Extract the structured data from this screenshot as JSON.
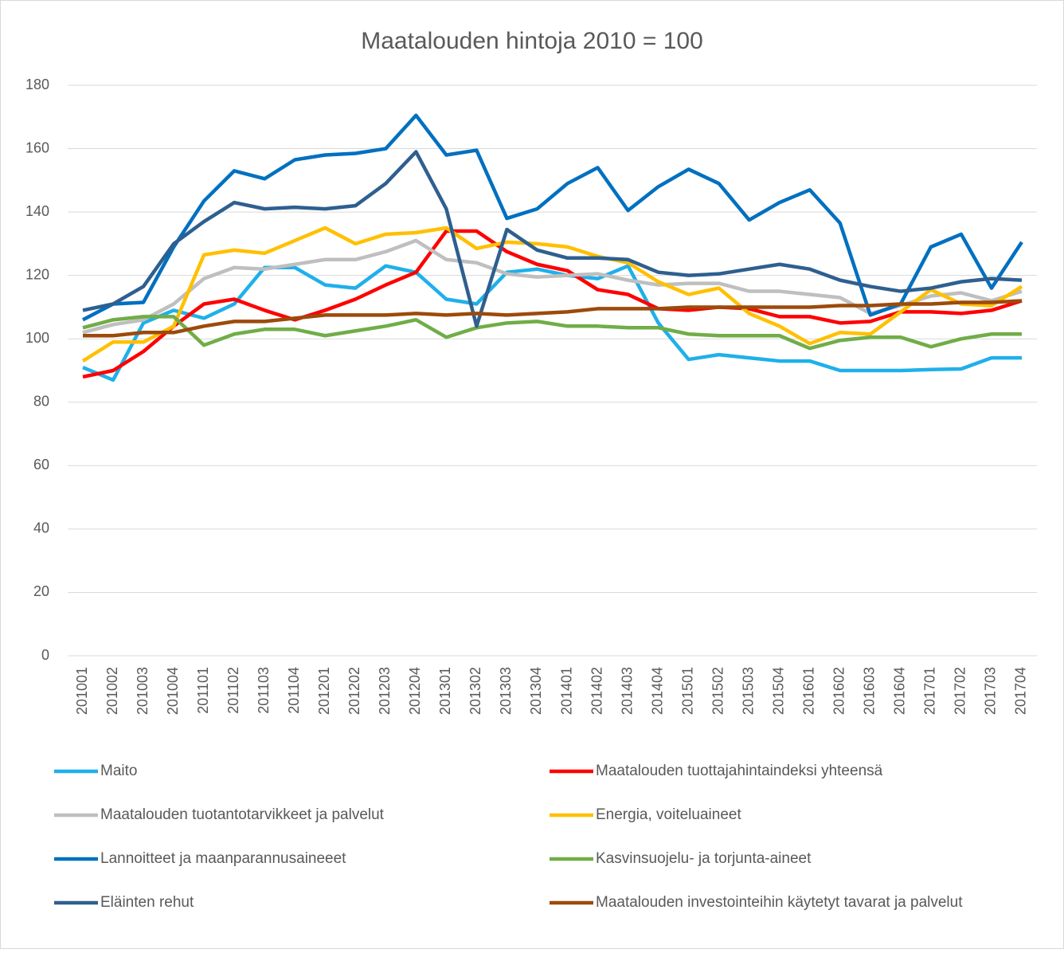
{
  "chart_data": {
    "type": "line",
    "title": "Maatalouden hintoja 2010 = 100",
    "categories": [
      "201001",
      "201002",
      "201003",
      "201004",
      "201101",
      "201102",
      "201103",
      "201104",
      "201201",
      "201202",
      "201203",
      "201204",
      "201301",
      "201302",
      "201303",
      "201304",
      "201401",
      "201402",
      "201403",
      "201404",
      "201501",
      "201502",
      "201503",
      "201504",
      "201601",
      "201602",
      "201603",
      "201604",
      "201701",
      "201702",
      "201703",
      "201704"
    ],
    "series": [
      {
        "name": "Maito",
        "color": "#1fb0ea",
        "values": [
          91,
          87,
          105,
          109,
          106.5,
          111,
          122.5,
          122.5,
          117,
          116,
          123,
          121,
          112.5,
          111,
          121,
          122,
          120,
          119,
          123,
          105,
          93.5,
          95,
          94,
          93,
          93,
          90,
          90,
          90,
          90.3,
          90.5,
          94,
          94
        ]
      },
      {
        "name": "Maatalouden tuottajahintaindeksi yhteensä",
        "color": "#ff0000",
        "values": [
          88,
          90,
          96,
          104,
          111,
          112.5,
          109,
          106,
          109,
          112.5,
          117,
          121,
          134,
          134,
          127.5,
          123.5,
          121.5,
          115.5,
          114,
          109.5,
          109,
          110,
          109.5,
          107,
          107,
          105,
          105.5,
          108.5,
          108.5,
          108,
          109,
          112
        ]
      },
      {
        "name": "Maatalouden tuotantotarvikkeet ja palvelut",
        "color": "#bfbfbf",
        "values": [
          102,
          104.5,
          106,
          111,
          119,
          122.5,
          122,
          123.5,
          125,
          125,
          127.5,
          131,
          125,
          124,
          120.5,
          119.5,
          120,
          120.5,
          118.5,
          117,
          117.5,
          117.5,
          115,
          115,
          114,
          113,
          108,
          110.5,
          113.5,
          114.5,
          112,
          115
        ]
      },
      {
        "name": "Energia, voiteluaineet",
        "color": "#ffc000",
        "values": [
          93,
          99,
          99,
          104,
          126.5,
          128,
          127,
          131,
          135,
          130,
          133,
          133.5,
          135,
          128.5,
          130.5,
          130,
          129,
          126,
          124,
          118,
          114,
          116,
          108,
          104,
          98.5,
          102,
          101.5,
          108.5,
          115.5,
          111,
          110.5,
          116.5
        ]
      },
      {
        "name": "Lannoitteet ja maanparannusaineeet",
        "color": "#0070c0",
        "values": [
          106,
          111,
          111.5,
          129,
          143.5,
          153,
          150.5,
          156.5,
          158,
          158.5,
          160,
          170.5,
          158,
          159.5,
          138,
          141,
          149,
          154,
          140.5,
          148,
          153.5,
          149,
          137.5,
          143,
          147,
          136.5,
          107.5,
          111,
          129,
          133,
          116,
          130.5
        ]
      },
      {
        "name": "Kasvinsuojelu- ja torjunta-aineet",
        "color": "#70ad47",
        "values": [
          103.5,
          106,
          107,
          107,
          98,
          101.5,
          103,
          103,
          101,
          102.5,
          104,
          106,
          100.5,
          103.5,
          105,
          105.5,
          104,
          104,
          103.5,
          103.5,
          101.5,
          101,
          101,
          101,
          97,
          99.5,
          100.5,
          100.5,
          97.5,
          100,
          101.5,
          101.5
        ]
      },
      {
        "name": "Eläinten rehut",
        "color": "#2e5f8f",
        "values": [
          109,
          111,
          116.5,
          130,
          137,
          143,
          141,
          141.5,
          141,
          142,
          149,
          159,
          141,
          104,
          134.5,
          128,
          125.5,
          125.5,
          125,
          121,
          120,
          120.5,
          122,
          123.5,
          122,
          118.5,
          116.5,
          115,
          116,
          118,
          119,
          118.5
        ]
      },
      {
        "name": "Maatalouden investointeihin käytetyt tavarat ja palvelut",
        "color": "#9c4a0b",
        "values": [
          101,
          101,
          102,
          102,
          104,
          105.5,
          105.5,
          106.5,
          107.5,
          107.5,
          107.5,
          108,
          107.5,
          108,
          107.5,
          108,
          108.5,
          109.5,
          109.5,
          109.5,
          110,
          110,
          110,
          110,
          110,
          110.5,
          110.5,
          111,
          111,
          111.5,
          111.5,
          112
        ]
      }
    ],
    "ylim": [
      0,
      180
    ],
    "yticks": [
      0,
      20,
      40,
      60,
      80,
      100,
      120,
      140,
      160,
      180
    ],
    "grid": true,
    "legend": "bottom"
  }
}
